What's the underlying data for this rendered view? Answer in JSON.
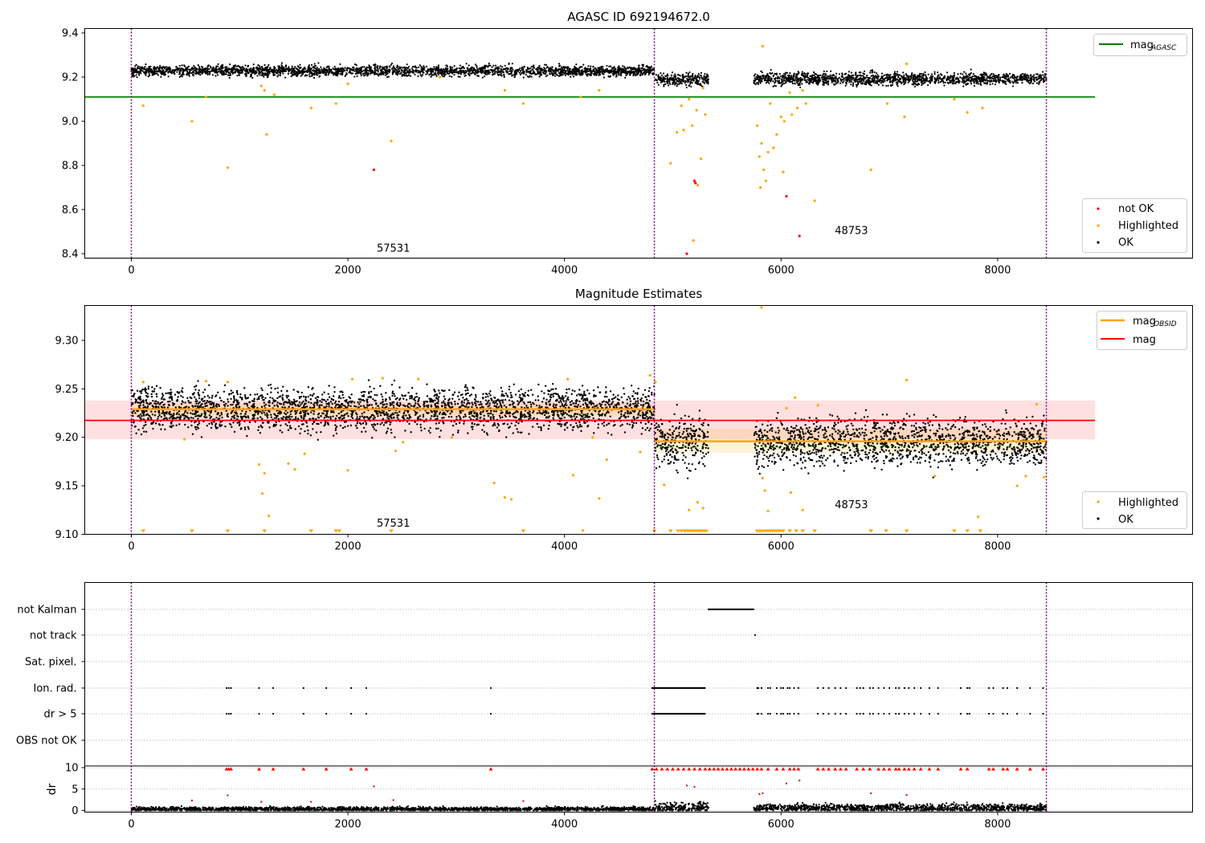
{
  "chart_data": [
    {
      "type": "scatter",
      "title": "AGASC ID 692194672.0",
      "xlim": [
        -430,
        9800
      ],
      "ylim": [
        8.38,
        9.42
      ],
      "xticks": [
        "0",
        "2000",
        "4000",
        "6000",
        "8000"
      ],
      "yticks": [
        "8.4",
        "8.6",
        "8.8",
        "9.0",
        "9.2",
        "9.4"
      ],
      "obsid_boundaries": [
        0,
        4830,
        8450
      ],
      "obsid_labels": [
        {
          "text": "57531",
          "x": 2420,
          "y": 8.41
        },
        {
          "text": "48753",
          "x": 6650,
          "y": 8.49
        }
      ],
      "ok_bands": [
        {
          "x": [
            0,
            4830
          ],
          "center": 9.228,
          "spread": 0.012
        },
        {
          "x": [
            4830,
            5330
          ],
          "center": 9.19,
          "spread": 0.014
        },
        {
          "x": [
            5750,
            8450
          ],
          "center": 9.192,
          "spread": 0.014
        }
      ],
      "not_ok_points": [
        [
          2240,
          8.78
        ],
        [
          5130,
          8.4
        ],
        [
          5200,
          8.73
        ],
        [
          5210,
          8.72
        ],
        [
          6050,
          8.66
        ],
        [
          6170,
          8.48
        ]
      ],
      "highlighted_points": [
        [
          110,
          9.07
        ],
        [
          560,
          9.0
        ],
        [
          690,
          9.11
        ],
        [
          890,
          8.79
        ],
        [
          1200,
          9.16
        ],
        [
          1230,
          9.14
        ],
        [
          1250,
          8.94
        ],
        [
          1320,
          9.12
        ],
        [
          1660,
          9.06
        ],
        [
          1890,
          9.08
        ],
        [
          2000,
          9.17
        ],
        [
          2400,
          8.91
        ],
        [
          2850,
          9.2
        ],
        [
          3450,
          9.14
        ],
        [
          3620,
          9.08
        ],
        [
          4150,
          9.11
        ],
        [
          4320,
          9.14
        ],
        [
          4980,
          8.81
        ],
        [
          5040,
          8.95
        ],
        [
          5080,
          9.07
        ],
        [
          5100,
          8.96
        ],
        [
          5150,
          9.1
        ],
        [
          5180,
          8.98
        ],
        [
          5220,
          9.05
        ],
        [
          5230,
          8.71
        ],
        [
          5260,
          8.83
        ],
        [
          5280,
          9.15
        ],
        [
          5300,
          9.03
        ],
        [
          5190,
          8.46
        ],
        [
          5780,
          8.98
        ],
        [
          5800,
          8.84
        ],
        [
          5810,
          8.7
        ],
        [
          5820,
          8.9
        ],
        [
          5840,
          8.78
        ],
        [
          5830,
          9.34
        ],
        [
          5860,
          8.73
        ],
        [
          5880,
          8.86
        ],
        [
          5900,
          9.08
        ],
        [
          5930,
          8.88
        ],
        [
          5960,
          8.94
        ],
        [
          6000,
          9.02
        ],
        [
          6020,
          8.77
        ],
        [
          6030,
          9.0
        ],
        [
          6080,
          9.13
        ],
        [
          6100,
          9.03
        ],
        [
          6150,
          9.06
        ],
        [
          6200,
          9.14
        ],
        [
          6230,
          9.08
        ],
        [
          6310,
          8.64
        ],
        [
          6830,
          8.78
        ],
        [
          6980,
          9.08
        ],
        [
          7140,
          9.02
        ],
        [
          7160,
          9.26
        ],
        [
          7600,
          9.1
        ],
        [
          7720,
          9.04
        ],
        [
          7860,
          9.06
        ]
      ],
      "hlines": [
        {
          "name": "mag_AGASC",
          "y": 9.11,
          "x": [
            -430,
            8900
          ],
          "color": "#008000"
        }
      ],
      "colors": {
        "ok": "#000000",
        "highlighted": "#ffa500",
        "not_ok": "#ff0000",
        "obsid_line": "#800080"
      },
      "legends": [
        {
          "position": "top-right",
          "entries": [
            {
              "label": "mag",
              "sub": "AGASC",
              "kind": "line",
              "color": "#008000"
            }
          ]
        },
        {
          "position": "bottom-right",
          "entries": [
            {
              "label": "not OK",
              "kind": "dot",
              "color": "#ff0000"
            },
            {
              "label": "Highlighted",
              "kind": "dot",
              "color": "#ffa500"
            },
            {
              "label": "OK",
              "kind": "dot",
              "color": "#000000"
            }
          ]
        }
      ]
    },
    {
      "type": "scatter",
      "title": "Magnitude Estimates",
      "xlim": [
        -430,
        9800
      ],
      "ylim": [
        9.1,
        9.336
      ],
      "xticks": [
        "0",
        "2000",
        "4000",
        "6000",
        "8000"
      ],
      "yticks": [
        "9.10",
        "9.15",
        "9.20",
        "9.25",
        "9.30"
      ],
      "obsid_boundaries": [
        0,
        4830,
        8450
      ],
      "obsid_labels": [
        {
          "text": "57531",
          "x": 2420,
          "y": 9.108
        },
        {
          "text": "48753",
          "x": 6650,
          "y": 9.127
        }
      ],
      "ok_bands": [
        {
          "x": [
            0,
            4830
          ],
          "center": 9.229,
          "spread": 0.011
        },
        {
          "x": [
            4830,
            5330
          ],
          "center": 9.196,
          "spread": 0.014
        },
        {
          "x": [
            5750,
            8450
          ],
          "center": 9.195,
          "spread": 0.012
        }
      ],
      "highlighted_points": [
        [
          110,
          9.257
        ],
        [
          490,
          9.198
        ],
        [
          690,
          9.258
        ],
        [
          890,
          9.257
        ],
        [
          1180,
          9.172
        ],
        [
          1210,
          9.142
        ],
        [
          1230,
          9.163
        ],
        [
          1270,
          9.119
        ],
        [
          1450,
          9.173
        ],
        [
          1510,
          9.167
        ],
        [
          1600,
          9.183
        ],
        [
          2000,
          9.166
        ],
        [
          2040,
          9.26
        ],
        [
          2320,
          9.261
        ],
        [
          2440,
          9.186
        ],
        [
          2510,
          9.195
        ],
        [
          2650,
          9.26
        ],
        [
          2960,
          9.2
        ],
        [
          3350,
          9.153
        ],
        [
          3450,
          9.138
        ],
        [
          3510,
          9.136
        ],
        [
          4030,
          9.26
        ],
        [
          4080,
          9.161
        ],
        [
          4170,
          9.104
        ],
        [
          4260,
          9.2
        ],
        [
          4320,
          9.137
        ],
        [
          4390,
          9.177
        ],
        [
          4700,
          9.185
        ],
        [
          4790,
          9.264
        ],
        [
          4840,
          9.257
        ],
        [
          4920,
          9.151
        ],
        [
          5150,
          9.125
        ],
        [
          5230,
          9.133
        ],
        [
          5280,
          9.127
        ],
        [
          5820,
          9.334
        ],
        [
          5830,
          9.158
        ],
        [
          5850,
          9.145
        ],
        [
          5880,
          9.124
        ],
        [
          6050,
          9.23
        ],
        [
          6090,
          9.143
        ],
        [
          6130,
          9.241
        ],
        [
          6200,
          9.125
        ],
        [
          6340,
          9.233
        ],
        [
          7160,
          9.259
        ],
        [
          7420,
          9.16
        ],
        [
          7820,
          9.118
        ],
        [
          8180,
          9.15
        ],
        [
          8260,
          9.16
        ],
        [
          8360,
          9.234
        ],
        [
          8430,
          9.159
        ]
      ],
      "clipped_low_x": [
        110,
        560,
        890,
        1230,
        1660,
        1890,
        1920,
        2400,
        3620,
        4830,
        4980,
        5050,
        5080,
        5110,
        5130,
        5150,
        5170,
        5190,
        5210,
        5230,
        5250,
        5270,
        5290,
        5310,
        5780,
        5800,
        5820,
        5840,
        5860,
        5880,
        5900,
        5920,
        5940,
        5960,
        5980,
        6000,
        6020,
        6080,
        6140,
        6200,
        6310,
        6830,
        6970,
        7160,
        7600,
        7720,
        7840
      ],
      "hlines": [
        {
          "name": "mag",
          "y": 9.2175,
          "x": [
            -430,
            8900
          ],
          "color": "#ff0000",
          "band": [
            9.198,
            9.238
          ]
        },
        {
          "name": "mag_OBSID",
          "y": 9.229,
          "x": [
            0,
            4830
          ],
          "color": "#ffa500",
          "band": [
            9.223,
            9.235
          ]
        },
        {
          "name": "mag_OBSID",
          "y": 9.196,
          "x": [
            4830,
            8450
          ],
          "color": "#ffa500",
          "band": [
            9.184,
            9.209
          ]
        }
      ],
      "colors": {
        "ok": "#000000",
        "highlighted": "#ffa500",
        "obsid_line": "#800080"
      },
      "legends": [
        {
          "position": "top-right",
          "entries": [
            {
              "label": "mag",
              "sub": "OBSID",
              "kind": "line",
              "color": "#ffa500"
            },
            {
              "label": "mag",
              "kind": "line",
              "color": "#ff0000"
            }
          ]
        },
        {
          "position": "bottom-right",
          "entries": [
            {
              "label": "Highlighted",
              "kind": "dot",
              "color": "#ffa500"
            },
            {
              "label": "OK",
              "kind": "dot",
              "color": "#000000"
            }
          ]
        }
      ]
    },
    {
      "type": "scatter",
      "title": "",
      "xlim": [
        -430,
        9800
      ],
      "flag_labels": [
        "not Kalman",
        "not track",
        "Sat. pixel.",
        "Ion. rad.",
        "dr > 5",
        "OBS not OK"
      ],
      "flags": {
        "not Kalman": {
          "ranges": [
            [
              5330,
              5750
            ]
          ],
          "points": []
        },
        "not track": {
          "ranges": [],
          "points": [
            5760
          ]
        },
        "Sat. pixel.": {
          "ranges": [],
          "points": []
        },
        "Ion. rad.": {
          "ranges": [
            [
              4810,
              5300
            ]
          ],
          "points": [
            880,
            900,
            920,
            1180,
            1310,
            1590,
            1800,
            2030,
            2170,
            3320,
            5780,
            5790,
            5820,
            5880,
            5900,
            5960,
            6000,
            6020,
            6060,
            6080,
            6120,
            6160,
            6340,
            6390,
            6440,
            6500,
            6550,
            6600,
            6700,
            6730,
            6760,
            6820,
            6850,
            6900,
            6950,
            7000,
            7060,
            7090,
            7140,
            7180,
            7230,
            7290,
            7370,
            7450,
            7660,
            7720,
            7740,
            7920,
            7960,
            8050,
            8090,
            8180,
            8300,
            8420
          ]
        },
        "dr > 5": {
          "ranges": [
            [
              4810,
              5300
            ]
          ],
          "points": [
            880,
            900,
            920,
            1180,
            1310,
            1590,
            1800,
            2030,
            2170,
            3320,
            5780,
            5790,
            5820,
            5880,
            5900,
            5960,
            6000,
            6020,
            6060,
            6080,
            6120,
            6160,
            6340,
            6390,
            6440,
            6500,
            6550,
            6600,
            6700,
            6730,
            6760,
            6820,
            6850,
            6900,
            6950,
            7000,
            7060,
            7090,
            7140,
            7180,
            7230,
            7290,
            7370,
            7450,
            7660,
            7720,
            7740,
            7920,
            7960,
            8050,
            8090,
            8180,
            8300,
            8420
          ]
        },
        "OBS not OK": {
          "ranges": [],
          "points": []
        }
      },
      "ylabel": "dr",
      "dr_ylim": [
        -0.4,
        10.4
      ],
      "dr_yticks": [
        "0",
        "5",
        "10"
      ],
      "dr_clipped_x": [
        880,
        900,
        920,
        1180,
        1310,
        1590,
        1800,
        2030,
        2170,
        3320,
        4810,
        4850,
        4900,
        4950,
        5000,
        5050,
        5100,
        5150,
        5200,
        5250,
        5300,
        5340,
        5380,
        5420,
        5460,
        5500,
        5540,
        5580,
        5620,
        5660,
        5700,
        5740,
        5780,
        5820,
        5880,
        5960,
        6020,
        6080,
        6120,
        6160,
        6340,
        6390,
        6440,
        6500,
        6550,
        6600,
        6700,
        6760,
        6820,
        6900,
        6950,
        7000,
        7060,
        7090,
        7140,
        7180,
        7230,
        7290,
        7370,
        7450,
        7660,
        7720,
        7920,
        7960,
        8050,
        8090,
        8180,
        8300,
        8420
      ],
      "dr_bands": [
        {
          "x": [
            0,
            4830
          ],
          "center": 0.3,
          "spread": 0.25
        },
        {
          "x": [
            4830,
            5330
          ],
          "center": 0.7,
          "spread": 0.6
        },
        {
          "x": [
            5750,
            8450
          ],
          "center": 0.6,
          "spread": 0.45
        }
      ],
      "dr_points": [
        [
          560,
          2.3
        ],
        [
          890,
          3.5
        ],
        [
          1200,
          2.0
        ],
        [
          1660,
          2.0
        ],
        [
          2240,
          5.6
        ],
        [
          2420,
          2.4
        ],
        [
          3620,
          2.2
        ],
        [
          5130,
          5.8
        ],
        [
          5200,
          5.5
        ],
        [
          5800,
          3.8
        ],
        [
          5830,
          4.0
        ],
        [
          6050,
          6.3
        ],
        [
          6170,
          7.0
        ],
        [
          6830,
          4.0
        ],
        [
          7160,
          3.6
        ]
      ],
      "colors": {
        "flag": "#000000",
        "dr": "#000000",
        "dr_clipped": "#ff0000",
        "grid": "#b0b0b0",
        "obsid_line": "#800080"
      }
    }
  ]
}
